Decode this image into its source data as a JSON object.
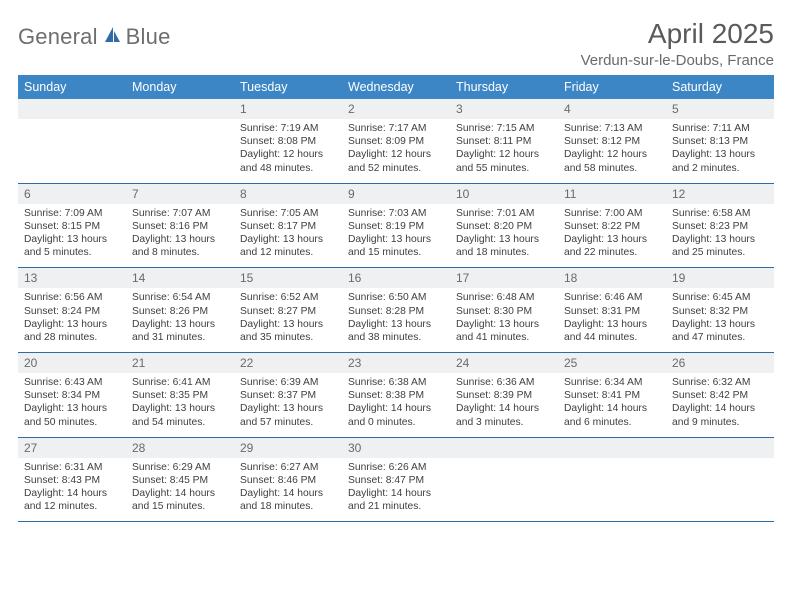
{
  "brand": {
    "name_a": "General",
    "name_b": "Blue"
  },
  "title": "April 2025",
  "location": "Verdun-sur-le-Doubs, France",
  "colors": {
    "header_bg": "#3d86c6",
    "header_text": "#ffffff",
    "daynum_bg": "#eef0f1",
    "daynum_text": "#6a6a6a",
    "body_text": "#3f3f3f",
    "row_divider": "#2f6ba5",
    "title_text": "#5a5a5a",
    "location_text": "#6a6a6a",
    "logo_text": "#6e6e6e",
    "logo_icon_fill": "#2f6ba5"
  },
  "day_headers": [
    "Sunday",
    "Monday",
    "Tuesday",
    "Wednesday",
    "Thursday",
    "Friday",
    "Saturday"
  ],
  "weeks": [
    [
      null,
      null,
      {
        "n": "1",
        "sr": "7:19 AM",
        "ss": "8:08 PM",
        "dl": "12 hours and 48 minutes."
      },
      {
        "n": "2",
        "sr": "7:17 AM",
        "ss": "8:09 PM",
        "dl": "12 hours and 52 minutes."
      },
      {
        "n": "3",
        "sr": "7:15 AM",
        "ss": "8:11 PM",
        "dl": "12 hours and 55 minutes."
      },
      {
        "n": "4",
        "sr": "7:13 AM",
        "ss": "8:12 PM",
        "dl": "12 hours and 58 minutes."
      },
      {
        "n": "5",
        "sr": "7:11 AM",
        "ss": "8:13 PM",
        "dl": "13 hours and 2 minutes."
      }
    ],
    [
      {
        "n": "6",
        "sr": "7:09 AM",
        "ss": "8:15 PM",
        "dl": "13 hours and 5 minutes."
      },
      {
        "n": "7",
        "sr": "7:07 AM",
        "ss": "8:16 PM",
        "dl": "13 hours and 8 minutes."
      },
      {
        "n": "8",
        "sr": "7:05 AM",
        "ss": "8:17 PM",
        "dl": "13 hours and 12 minutes."
      },
      {
        "n": "9",
        "sr": "7:03 AM",
        "ss": "8:19 PM",
        "dl": "13 hours and 15 minutes."
      },
      {
        "n": "10",
        "sr": "7:01 AM",
        "ss": "8:20 PM",
        "dl": "13 hours and 18 minutes."
      },
      {
        "n": "11",
        "sr": "7:00 AM",
        "ss": "8:22 PM",
        "dl": "13 hours and 22 minutes."
      },
      {
        "n": "12",
        "sr": "6:58 AM",
        "ss": "8:23 PM",
        "dl": "13 hours and 25 minutes."
      }
    ],
    [
      {
        "n": "13",
        "sr": "6:56 AM",
        "ss": "8:24 PM",
        "dl": "13 hours and 28 minutes."
      },
      {
        "n": "14",
        "sr": "6:54 AM",
        "ss": "8:26 PM",
        "dl": "13 hours and 31 minutes."
      },
      {
        "n": "15",
        "sr": "6:52 AM",
        "ss": "8:27 PM",
        "dl": "13 hours and 35 minutes."
      },
      {
        "n": "16",
        "sr": "6:50 AM",
        "ss": "8:28 PM",
        "dl": "13 hours and 38 minutes."
      },
      {
        "n": "17",
        "sr": "6:48 AM",
        "ss": "8:30 PM",
        "dl": "13 hours and 41 minutes."
      },
      {
        "n": "18",
        "sr": "6:46 AM",
        "ss": "8:31 PM",
        "dl": "13 hours and 44 minutes."
      },
      {
        "n": "19",
        "sr": "6:45 AM",
        "ss": "8:32 PM",
        "dl": "13 hours and 47 minutes."
      }
    ],
    [
      {
        "n": "20",
        "sr": "6:43 AM",
        "ss": "8:34 PM",
        "dl": "13 hours and 50 minutes."
      },
      {
        "n": "21",
        "sr": "6:41 AM",
        "ss": "8:35 PM",
        "dl": "13 hours and 54 minutes."
      },
      {
        "n": "22",
        "sr": "6:39 AM",
        "ss": "8:37 PM",
        "dl": "13 hours and 57 minutes."
      },
      {
        "n": "23",
        "sr": "6:38 AM",
        "ss": "8:38 PM",
        "dl": "14 hours and 0 minutes."
      },
      {
        "n": "24",
        "sr": "6:36 AM",
        "ss": "8:39 PM",
        "dl": "14 hours and 3 minutes."
      },
      {
        "n": "25",
        "sr": "6:34 AM",
        "ss": "8:41 PM",
        "dl": "14 hours and 6 minutes."
      },
      {
        "n": "26",
        "sr": "6:32 AM",
        "ss": "8:42 PM",
        "dl": "14 hours and 9 minutes."
      }
    ],
    [
      {
        "n": "27",
        "sr": "6:31 AM",
        "ss": "8:43 PM",
        "dl": "14 hours and 12 minutes."
      },
      {
        "n": "28",
        "sr": "6:29 AM",
        "ss": "8:45 PM",
        "dl": "14 hours and 15 minutes."
      },
      {
        "n": "29",
        "sr": "6:27 AM",
        "ss": "8:46 PM",
        "dl": "14 hours and 18 minutes."
      },
      {
        "n": "30",
        "sr": "6:26 AM",
        "ss": "8:47 PM",
        "dl": "14 hours and 21 minutes."
      },
      null,
      null,
      null
    ]
  ],
  "labels": {
    "sunrise": "Sunrise: ",
    "sunset": "Sunset: ",
    "daylight": "Daylight: "
  }
}
